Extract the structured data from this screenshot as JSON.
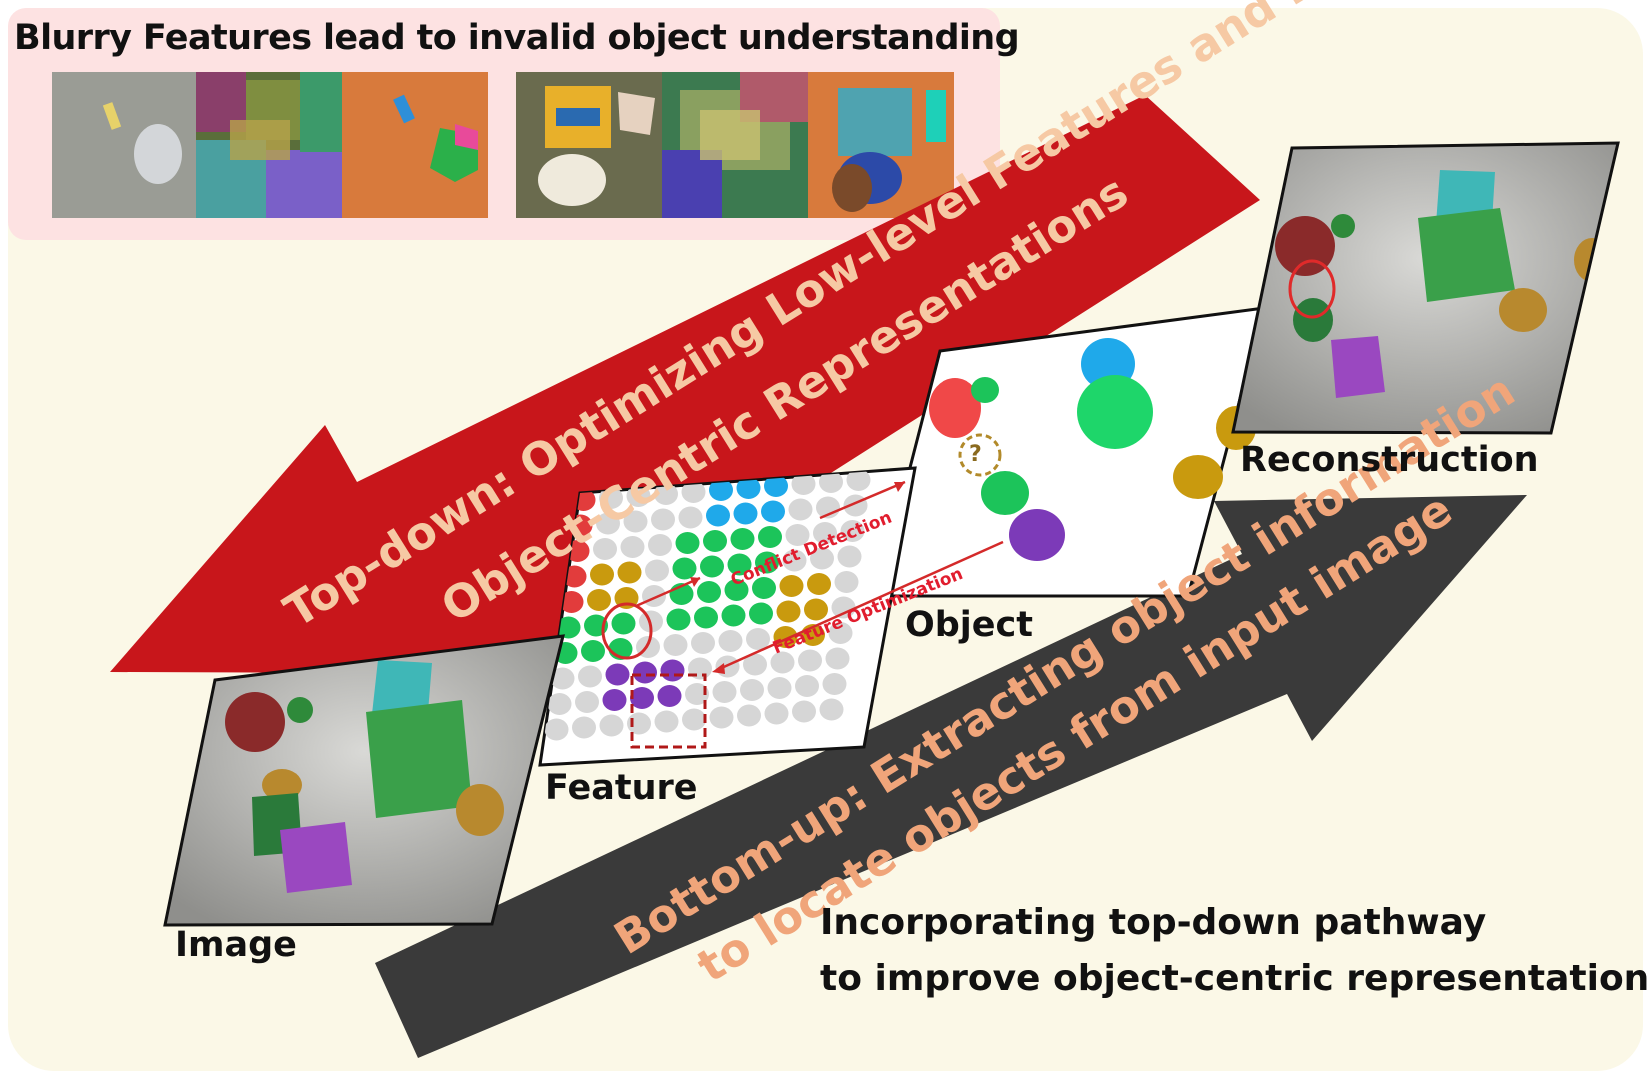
{
  "panel": {
    "title": "Blurry Features lead to invalid object understanding"
  },
  "arrows": {
    "top_down": {
      "line1": "Top-down: Optimizing Low-level Features and Refining",
      "line2": "Object-Centric Representations"
    },
    "bottom_up": {
      "line1": "Bottom-up: Extracting object information",
      "line2": "to locate objects from input image"
    }
  },
  "labels": {
    "image": "Image",
    "feature": "Feature",
    "object": "Object",
    "reconstruction": "Reconstruction",
    "conflict_detection": "Conflict Detection",
    "feature_optimization": "Feature Optimization",
    "question_mark": "?"
  },
  "caption": {
    "line1": "Incorporating top-down pathway",
    "line2": "to improve object-centric representations"
  },
  "colors": {
    "background_cream": "#fbf8e7",
    "panel_pink": "#fde2e2",
    "top_down_red": "#c8161b",
    "bottom_up_gray": "#3a3a3a",
    "top_down_text": "#f6c9a4",
    "bottom_up_text": "#f0a57a",
    "annotation_red": "#e11d2e",
    "red_obj": "#e23c3c",
    "green_obj": "#1cc45a",
    "blue_obj": "#1fa9ea",
    "gold_obj": "#c99a0e",
    "purple_obj": "#7c3ab8",
    "gray_dot": "#d6d6d6"
  },
  "feature_grid": {
    "rows": 10,
    "cols": 12
  }
}
